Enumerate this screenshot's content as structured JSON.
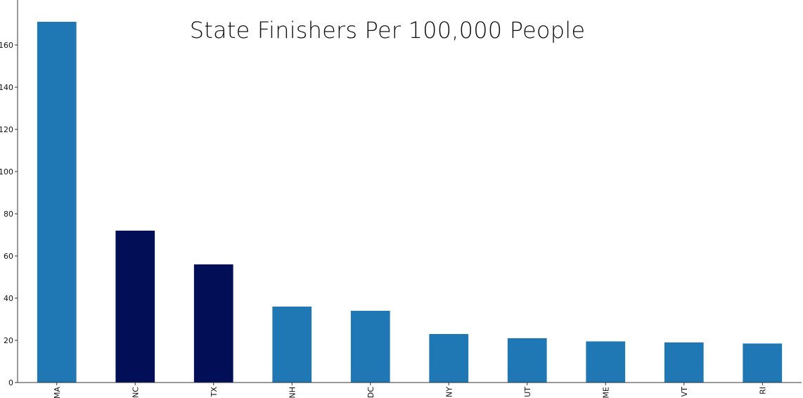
{
  "chart_data": {
    "type": "bar",
    "title": "State Finishers Per 100,000 People",
    "xlabel": "",
    "ylabel": "",
    "categories": [
      "MA",
      "NC",
      "TX",
      "NH",
      "DC",
      "NY",
      "UT",
      "ME",
      "VT",
      "RI"
    ],
    "values": [
      171,
      72,
      56,
      36,
      34,
      23,
      21,
      19.5,
      19,
      18.5
    ],
    "bar_colors": [
      "#1f77b4",
      "#020f56",
      "#020f56",
      "#1f77b4",
      "#1f77b4",
      "#1f77b4",
      "#1f77b4",
      "#1f77b4",
      "#1f77b4",
      "#1f77b4"
    ],
    "ylim": [
      0,
      180
    ],
    "yticks": [
      0,
      20,
      40,
      60,
      80,
      100,
      120,
      140,
      160
    ],
    "grid": false,
    "legend": "none"
  },
  "colors": {
    "primary_bar": "#1f77b4",
    "highlight_bar": "#020f56",
    "axis": "#333333"
  }
}
